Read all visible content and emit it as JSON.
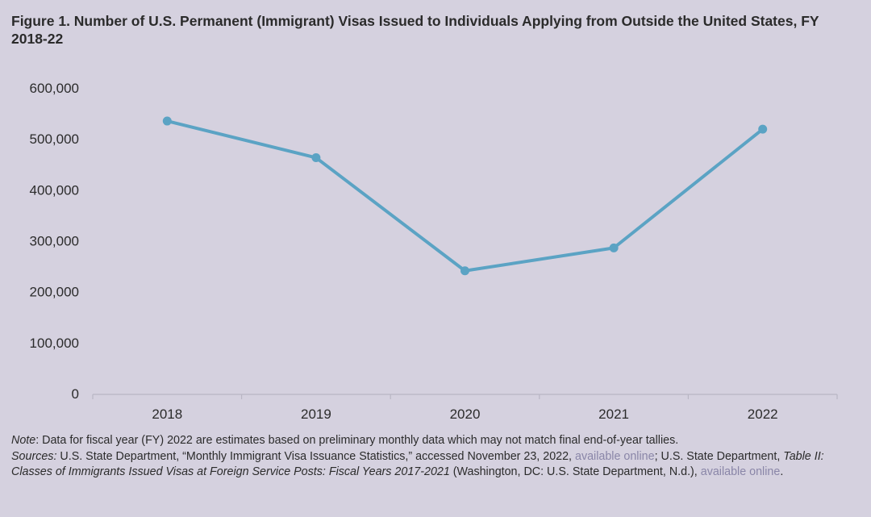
{
  "title": "Figure 1. Number of U.S. Permanent (Immigrant) Visas Issued to Individuals Applying from Outside the United States, FY 2018-22",
  "chart_data": {
    "type": "line",
    "categories": [
      "2018",
      "2019",
      "2020",
      "2021",
      "2022"
    ],
    "series": [
      {
        "values": [
          535000,
          463000,
          241000,
          286000,
          519000
        ]
      }
    ],
    "ylim": [
      0,
      600000
    ],
    "yticks": [
      0,
      100000,
      200000,
      300000,
      400000,
      500000,
      600000
    ],
    "ytick_labels": [
      "0",
      "100,000",
      "200,000",
      "300,000",
      "400,000",
      "500,000",
      "600,000"
    ],
    "xlabel": "",
    "ylabel": "",
    "grid": false,
    "line_color": "#5ba3c4"
  },
  "notes": {
    "note_label": "Note",
    "note_text": ": Data for fiscal year (FY) 2022 are estimates based on preliminary monthly data which may not match final end-of-year tallies.",
    "sources_label": "Sources:",
    "sources_text_1": " U.S. State Department, “Monthly Immigrant Visa Issuance Statistics,” accessed November 23, 2022, ",
    "link_1": "available online",
    "sources_text_2": "; U.S. State Department, ",
    "table_title": "Table II: Classes of Immigrants Issued Visas at Foreign Service Posts: Fiscal Years 2017-2021",
    "sources_text_3": " (Washington, DC: U.S. State Department, N.d.), ",
    "link_2": "available online",
    "end": "."
  }
}
